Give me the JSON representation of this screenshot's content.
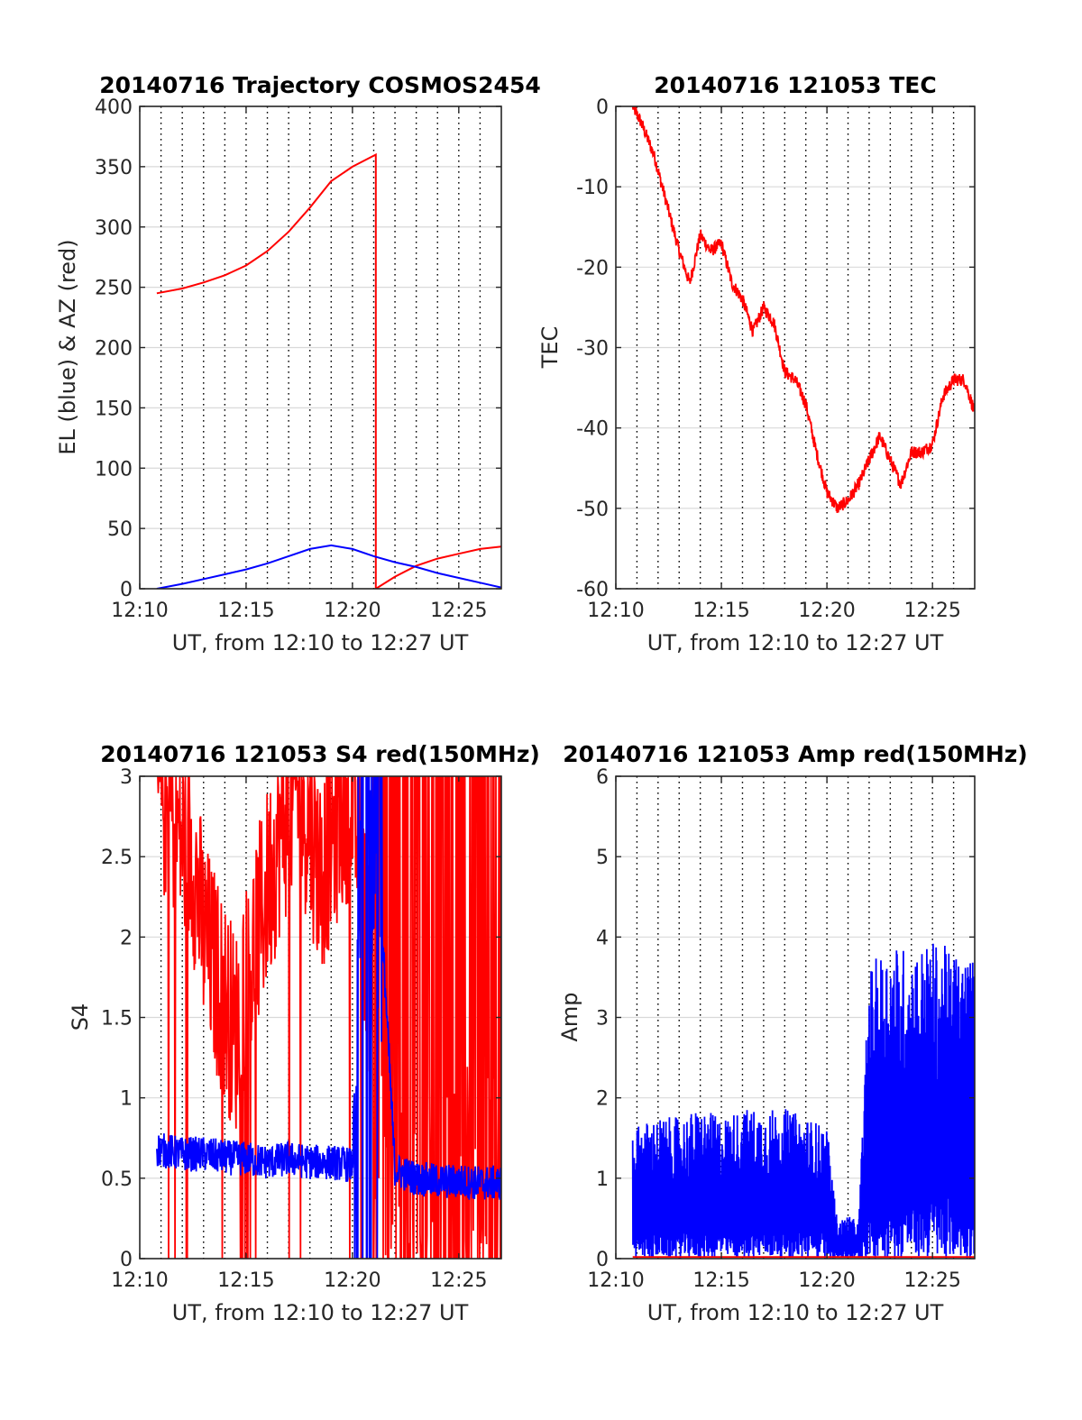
{
  "colors": {
    "blue": "#0000ff",
    "red": "#ff0000",
    "grid": "#d9d9d9"
  },
  "panels": [
    {
      "id": "traj",
      "title": "20140716 Trajectory COSMOS2454",
      "xlabel": "UT, from 12:10 to 12:27 UT",
      "ylabel": "EL (blue) & AZ (red)",
      "ylim": [
        0,
        400
      ],
      "yticks": [
        0,
        50,
        100,
        150,
        200,
        250,
        300,
        350,
        400
      ],
      "ytick_labels": [
        "0",
        "50",
        "100",
        "150",
        "200",
        "250",
        "300",
        "350",
        "400"
      ]
    },
    {
      "id": "tec",
      "title": "20140716 121053 TEC",
      "xlabel": "UT, from 12:10 to 12:27 UT",
      "ylabel": "TEC",
      "ylim": [
        -60,
        0
      ],
      "yticks": [
        -60,
        -50,
        -40,
        -30,
        -20,
        -10,
        0
      ],
      "ytick_labels": [
        "-60",
        "-50",
        "-40",
        "-30",
        "-20",
        "-10",
        "0"
      ]
    },
    {
      "id": "s4",
      "title": "20140716 121053 S4 red(150MHz)",
      "xlabel": "UT, from 12:10 to 12:27 UT",
      "ylabel": "S4",
      "ylim": [
        0,
        3
      ],
      "yticks": [
        0,
        0.5,
        1,
        1.5,
        2,
        2.5,
        3
      ],
      "ytick_labels": [
        "0",
        "0.5",
        "1",
        "1.5",
        "2",
        "2.5",
        "3"
      ]
    },
    {
      "id": "amp",
      "title": "20140716 121053 Amp red(150MHz)",
      "xlabel": "UT, from 12:10 to 12:27 UT",
      "ylabel": "Amp",
      "ylim": [
        0,
        6
      ],
      "yticks": [
        0,
        1,
        2,
        3,
        4,
        5,
        6
      ],
      "ytick_labels": [
        "0",
        "1",
        "2",
        "3",
        "4",
        "5",
        "6"
      ]
    }
  ],
  "chart_data": [
    {
      "type": "line",
      "title": "20140716 Trajectory COSMOS2454",
      "xlabel": "UT, from 12:10 to 12:27 UT",
      "ylabel": "EL (blue) & AZ (red)",
      "xlim": [
        "12:10",
        "12:27"
      ],
      "xtick_labels": [
        "12:10",
        "12:15",
        "12:20",
        "12:25"
      ],
      "ylim": [
        0,
        400
      ],
      "grid": true,
      "series": [
        {
          "color": "red",
          "x": [
            "12:10.8",
            "12:12",
            "12:13",
            "12:14",
            "12:15",
            "12:16",
            "12:17",
            "12:18",
            "12:19",
            "12:20",
            "12:21.1",
            "12:21.1",
            "12:22",
            "12:23",
            "12:24",
            "12:25",
            "12:26",
            "12:27"
          ],
          "y": [
            245,
            249,
            254,
            260,
            268,
            280,
            296,
            316,
            338,
            350,
            360,
            0,
            10,
            19,
            25,
            29,
            33,
            35
          ]
        },
        {
          "color": "blue",
          "x": [
            "12:10.8",
            "12:12",
            "12:13",
            "12:14",
            "12:15",
            "12:16",
            "12:17",
            "12:18",
            "12:19",
            "12:20",
            "12:21",
            "12:22",
            "12:23",
            "12:24",
            "12:25",
            "12:26",
            "12:27"
          ],
          "y": [
            0,
            4,
            8,
            12,
            16,
            21,
            27,
            33,
            36,
            33,
            27,
            22,
            18,
            13,
            9,
            5,
            1
          ]
        }
      ]
    },
    {
      "type": "line",
      "title": "20140716 121053 TEC",
      "xlabel": "UT, from 12:10 to 12:27 UT",
      "ylabel": "TEC",
      "xlim": [
        "12:10",
        "12:27"
      ],
      "xtick_labels": [
        "12:10",
        "12:15",
        "12:20",
        "12:25"
      ],
      "ylim": [
        -60,
        0
      ],
      "grid": true,
      "series": [
        {
          "color": "red",
          "x": [
            "12:10.8",
            "12:11.2",
            "12:11.8",
            "12:12.5",
            "12:13.0",
            "12:13.5",
            "12:14.0",
            "12:14.5",
            "12:15.0",
            "12:15.5",
            "12:16.0",
            "12:16.5",
            "12:17.0",
            "12:17.5",
            "12:18.0",
            "12:18.5",
            "12:19.0",
            "12:19.5",
            "12:20.0",
            "12:20.5",
            "12:21.0",
            "12:21.5",
            "12:22.0",
            "12:22.5",
            "12:23.0",
            "12:23.5",
            "12:24.0",
            "12:24.5",
            "12:25.0",
            "12:25.5",
            "12:26.0",
            "12:26.5",
            "12:27.0"
          ],
          "y": [
            0,
            -2,
            -6,
            -13,
            -18,
            -22,
            -16,
            -18,
            -17,
            -22,
            -24,
            -28,
            -25,
            -27,
            -33,
            -34,
            -37,
            -43,
            -48,
            -50,
            -49,
            -47,
            -44,
            -41,
            -44,
            -47,
            -43,
            -43,
            -42,
            -36,
            -34,
            -34,
            -38
          ]
        }
      ]
    },
    {
      "type": "line",
      "title": "20140716 121053 S4 red(150MHz)",
      "xlabel": "UT, from 12:10 to 12:27 UT",
      "ylabel": "S4",
      "xlim": [
        "12:10",
        "12:27"
      ],
      "xtick_labels": [
        "12:10",
        "12:15",
        "12:20",
        "12:25"
      ],
      "ylim": [
        0,
        3
      ],
      "grid": true,
      "series": [
        {
          "color": "red",
          "x": [
            "12:10.8",
            "12:11.5",
            "12:12.0",
            "12:12.5",
            "12:13.0",
            "12:13.5",
            "12:14.0",
            "12:14.5",
            "12:15.0",
            "12:15.5",
            "12:16.0",
            "12:16.5",
            "12:17.0",
            "12:17.5",
            "12:18.0",
            "12:18.5",
            "12:19.0",
            "12:19.5",
            "12:20.0",
            "12:21.0",
            "12:22.0",
            "12:23.0",
            "12:24.0",
            "12:25.0",
            "12:26.0",
            "12:27.0"
          ],
          "y": [
            2.9,
            2.8,
            2.6,
            2.5,
            2.0,
            1.8,
            1.6,
            1.4,
            1.7,
            2.0,
            2.3,
            2.6,
            2.8,
            2.9,
            2.7,
            2.4,
            2.6,
            2.8,
            2.9,
            1.5,
            1.5,
            1.5,
            1.5,
            1.5,
            1.5,
            1.5
          ]
        },
        {
          "color": "blue",
          "x": [
            "12:10.8",
            "12:12",
            "12:13",
            "12:14",
            "12:15",
            "12:16",
            "12:17",
            "12:18",
            "12:19",
            "12:20",
            "12:20.5",
            "12:21",
            "12:21.5",
            "12:22",
            "12:23",
            "12:24",
            "12:25",
            "12:26",
            "12:27"
          ],
          "y": [
            0.68,
            0.65,
            0.65,
            0.63,
            0.62,
            0.6,
            0.62,
            0.6,
            0.6,
            0.58,
            2.8,
            2.3,
            1.8,
            0.55,
            0.5,
            0.48,
            0.48,
            0.47,
            0.47
          ]
        }
      ]
    },
    {
      "type": "line",
      "title": "20140716 121053 Amp red(150MHz)",
      "xlabel": "UT, from 12:10 to 12:27 UT",
      "ylabel": "Amp",
      "xlim": [
        "12:10",
        "12:27"
      ],
      "xtick_labels": [
        "12:10",
        "12:15",
        "12:20",
        "12:25"
      ],
      "ylim": [
        0,
        6
      ],
      "grid": true,
      "series": [
        {
          "color": "blue",
          "x": [
            "12:10.8",
            "12:12",
            "12:13",
            "12:14",
            "12:15",
            "12:16",
            "12:17",
            "12:18",
            "12:19",
            "12:20",
            "12:20.5",
            "12:21",
            "12:21.5",
            "12:22",
            "12:23",
            "12:24",
            "12:25",
            "12:26",
            "12:27"
          ],
          "y": [
            1.5,
            1.6,
            1.6,
            1.7,
            1.6,
            1.7,
            1.7,
            1.7,
            1.6,
            1.5,
            0.4,
            0.5,
            0.4,
            3.3,
            3.6,
            3.5,
            3.6,
            3.5,
            3.4
          ]
        },
        {
          "color": "red",
          "x": [
            "12:10.8",
            "12:27"
          ],
          "y": [
            0.02,
            0.02
          ]
        }
      ]
    }
  ]
}
